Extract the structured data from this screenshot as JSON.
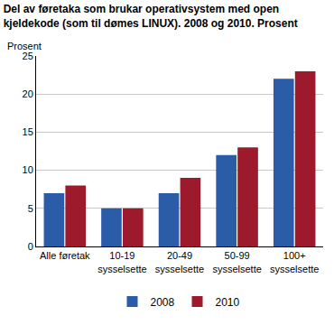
{
  "chart_data": {
    "type": "bar",
    "title": "Del av føretaka som brukar operativsystem med open\nkjeldekode (som til dømes LINUX). 2008 og 2010. Prosent",
    "y_label": "Prosent",
    "categories": [
      "Alle føretak",
      "10-19\nsysselsette",
      "20-49\nsysselsette",
      "50-99\nsysselsette",
      "100+\nsysselsette"
    ],
    "series": [
      {
        "name": "2008",
        "color": "#2b5ca8",
        "values": [
          7,
          5,
          7,
          12,
          22
        ]
      },
      {
        "name": "2010",
        "color": "#9c1a2b",
        "values": [
          8,
          5,
          9,
          13,
          23
        ]
      }
    ],
    "ylim": [
      0,
      25
    ],
    "yticks": [
      0,
      5,
      10,
      15,
      20,
      25
    ],
    "grid": true,
    "legend": "bottom"
  }
}
